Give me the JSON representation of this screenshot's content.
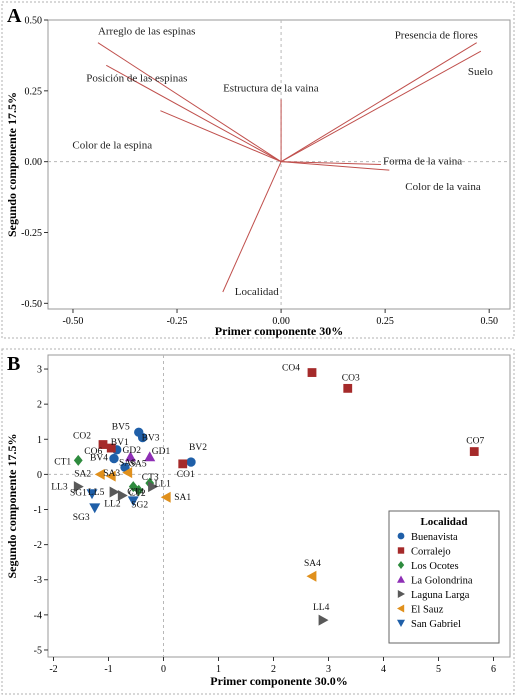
{
  "chart_data": [
    {
      "panel_label": "A",
      "type": "biplot",
      "xlabel": "Primer componente 30%",
      "ylabel": "Segundo componente 17.5%",
      "xlim": [
        -0.56,
        0.55
      ],
      "ylim": [
        -0.52,
        0.5
      ],
      "xticks": [
        -0.5,
        -0.25,
        0.0,
        0.25,
        0.5
      ],
      "xtick_labels": [
        "-0.50",
        "-0.25",
        "0.00",
        "0.25",
        "0.50"
      ],
      "yticks": [
        -0.5,
        -0.25,
        0.0,
        0.25,
        0.5
      ],
      "ytick_labels": [
        "-0.50",
        "-0.25",
        "0.00",
        "0.25",
        "0.50"
      ],
      "reference_lines": true,
      "vector_color": "#c0504d",
      "vectors": [
        {
          "name": "Arreglo de las espinas",
          "x": -0.44,
          "y": 0.42
        },
        {
          "name": "Posición de las espinas",
          "x": -0.42,
          "y": 0.34
        },
        {
          "name": "Color de la espina",
          "x": -0.29,
          "y": 0.18
        },
        {
          "name": "Estructura de la vaina",
          "x": 0.0,
          "y": 0.22
        },
        {
          "name": "Presencia de flores",
          "x": 0.47,
          "y": 0.42
        },
        {
          "name": "Suelo",
          "x": 0.48,
          "y": 0.39
        },
        {
          "name": "Forma de la vaina",
          "x": 0.24,
          "y": -0.01
        },
        {
          "name": "Color de la vaina",
          "x": 0.26,
          "y": -0.03
        },
        {
          "name": "Localidad",
          "x": -0.14,
          "y": -0.46
        }
      ]
    },
    {
      "panel_label": "B",
      "type": "scatter",
      "xlabel": "Primer componente 30.0%",
      "ylabel": "Segundo componente 17.5%",
      "xlim": [
        -2.1,
        6.3
      ],
      "ylim": [
        -5.2,
        3.4
      ],
      "xticks": [
        -2,
        -1,
        0,
        1,
        2,
        3,
        4,
        5,
        6
      ],
      "yticks": [
        -5,
        -4,
        -3,
        -2,
        -1,
        0,
        1,
        2,
        3
      ],
      "reference_lines": true,
      "legend": {
        "title": "Localidad",
        "position": "bottom-right"
      },
      "series": [
        {
          "name": "Buenavista",
          "marker": "circle",
          "color": "#1f5fa8",
          "points": [
            {
              "label": "BV5",
              "x": -0.45,
              "y": 1.2
            },
            {
              "label": "BV3",
              "x": -0.38,
              "y": 1.05
            },
            {
              "label": "BV1",
              "x": -0.85,
              "y": 0.7
            },
            {
              "label": "BV4",
              "x": -0.9,
              "y": 0.45
            },
            {
              "label": "BV2",
              "x": 0.5,
              "y": 0.35
            },
            {
              "label": "SA6",
              "x": -0.7,
              "y": 0.2
            }
          ]
        },
        {
          "name": "Corralejo",
          "marker": "square",
          "color": "#a52a2a",
          "points": [
            {
              "label": "CO4",
              "x": 2.7,
              "y": 2.9
            },
            {
              "label": "CO3",
              "x": 3.35,
              "y": 2.45
            },
            {
              "label": "CO7",
              "x": 5.65,
              "y": 0.65
            },
            {
              "label": "CO2",
              "x": -1.1,
              "y": 0.85
            },
            {
              "label": "CO6",
              "x": -0.95,
              "y": 0.75
            },
            {
              "label": "CO1",
              "x": 0.35,
              "y": 0.3
            }
          ]
        },
        {
          "name": "Los Ocotes",
          "marker": "diamond",
          "color": "#2e8b3e",
          "points": [
            {
              "label": "CT1",
              "x": -1.55,
              "y": 0.4
            },
            {
              "label": "CT3",
              "x": -0.25,
              "y": -0.25
            },
            {
              "label": "CT4",
              "x": -0.55,
              "y": -0.35
            },
            {
              "label": "CT2",
              "x": -0.45,
              "y": -0.45
            }
          ]
        },
        {
          "name": "La Golondrina",
          "marker": "triangle-up",
          "color": "#8e2fb5",
          "points": [
            {
              "label": "GD1",
              "x": -0.25,
              "y": 0.5
            },
            {
              "label": "GD2",
              "x": -0.6,
              "y": 0.5
            }
          ]
        },
        {
          "name": "Laguna Larga",
          "marker": "triangle-right",
          "color": "#595959",
          "points": [
            {
              "label": "LL4",
              "x": 2.9,
              "y": -4.15
            },
            {
              "label": "LL1",
              "x": -0.2,
              "y": -0.35
            },
            {
              "label": "LL3",
              "x": -1.55,
              "y": -0.35
            },
            {
              "label": "LL5",
              "x": -0.9,
              "y": -0.5
            },
            {
              "label": "LL2",
              "x": -0.75,
              "y": -0.6
            }
          ]
        },
        {
          "name": "El Sauz",
          "marker": "triangle-left",
          "color": "#e0901c",
          "points": [
            {
              "label": "SA4",
              "x": 2.7,
              "y": -2.9
            },
            {
              "label": "SA1",
              "x": 0.05,
              "y": -0.65
            },
            {
              "label": "SA2",
              "x": -1.15,
              "y": 0.0
            },
            {
              "label": "SA3",
              "x": -0.95,
              "y": -0.05
            },
            {
              "label": "SA5",
              "x": -0.65,
              "y": 0.05
            }
          ]
        },
        {
          "name": "San Gabriel",
          "marker": "triangle-down",
          "color": "#1f5fa8",
          "points": [
            {
              "label": "SG1",
              "x": -1.3,
              "y": -0.55
            },
            {
              "label": "SG3",
              "x": -1.25,
              "y": -0.95
            },
            {
              "label": "SG2",
              "x": -0.55,
              "y": -0.75
            }
          ]
        }
      ]
    }
  ]
}
